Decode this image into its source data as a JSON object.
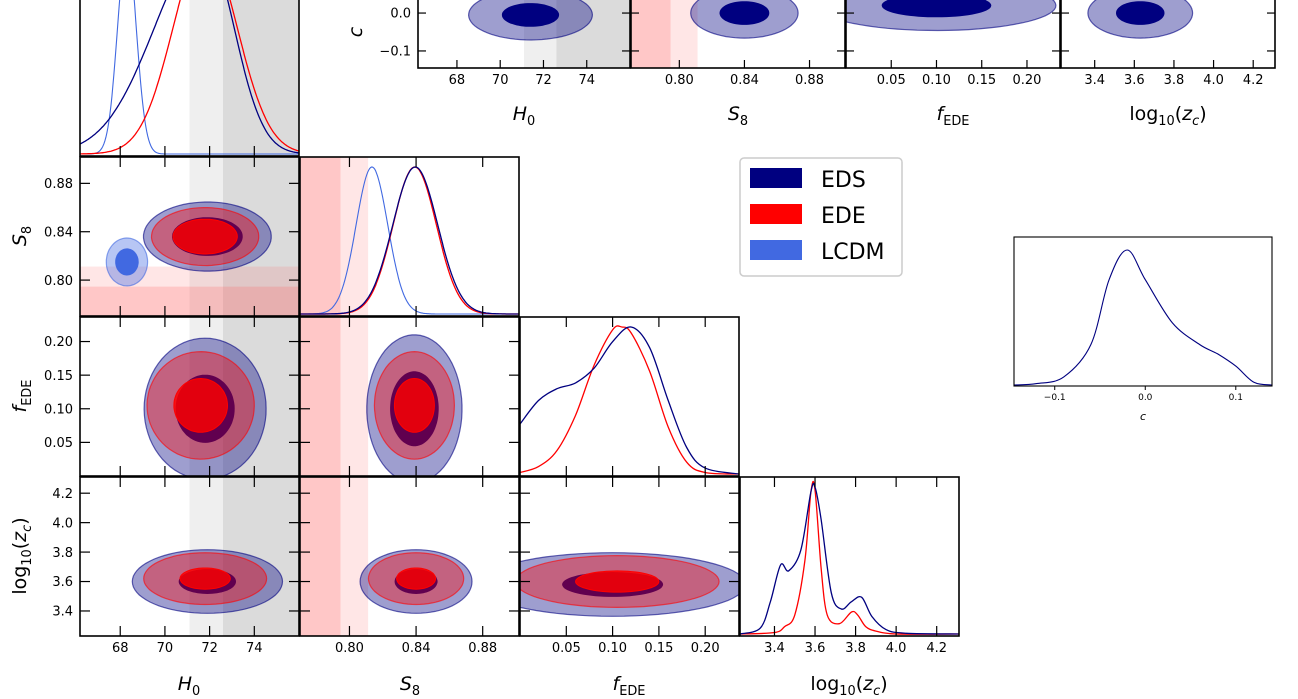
{
  "chart_data": {
    "type": "corner",
    "colors": {
      "EDS": "#000080",
      "EDE": "#ff0000",
      "LCDM": "#4169e1"
    },
    "legend": {
      "entries": [
        "EDS",
        "EDE",
        "LCDM"
      ],
      "placement": "upper-middle-right"
    },
    "parameters": [
      {
        "key": "H0",
        "label_main": "H",
        "label_sub": "0",
        "range": [
          66.2,
          76
        ],
        "ticks": [
          68,
          70,
          72,
          74
        ],
        "tick_labels": [
          "68",
          "70",
          "72",
          "74"
        ]
      },
      {
        "key": "S8",
        "label_main": "S",
        "label_sub": "8",
        "range": [
          0.7703,
          0.9018
        ],
        "ticks": [
          0.8,
          0.84,
          0.88
        ],
        "tick_labels": [
          "0.80",
          "0.84",
          "0.88"
        ]
      },
      {
        "key": "fEDE",
        "label_main": "f",
        "label_sub": "EDE",
        "range": [
          0,
          0.2365
        ],
        "ticks": [
          0.05,
          0.1,
          0.15,
          0.2
        ],
        "tick_labels": [
          "0.05",
          "0.10",
          "0.15",
          "0.20"
        ]
      },
      {
        "key": "logzc",
        "label_main": "log",
        "label_sub": "10",
        "label_tail": "(z",
        "label_tail_sub": "c",
        "label_end": ")",
        "range": [
          3.23,
          4.31
        ],
        "ticks": [
          3.4,
          3.6,
          3.8,
          4.0,
          4.2
        ],
        "tick_labels": [
          "3.4",
          "3.6",
          "3.8",
          "4.0",
          "4.2"
        ]
      }
    ],
    "extra_parameter": {
      "key": "c",
      "label": "c",
      "range": [
        -0.145,
        0.14
      ],
      "ticks": [
        -0.1,
        0.0,
        0.1
      ],
      "tick_labels": [
        "−0.1",
        "0.0",
        "0.1"
      ]
    },
    "bands": {
      "H0": {
        "color": "#999999",
        "inner": [
          72.6,
          76
        ],
        "outer": [
          71.1,
          76
        ]
      },
      "S8": {
        "color": "#ff6666",
        "inner": [
          0.7703,
          0.7946
        ],
        "outer": [
          0.7703,
          0.8112
        ]
      }
    },
    "marginals": {
      "H0": {
        "EDS": {
          "mu": 71.8,
          "sigma": 1.3,
          "left": 1.75,
          "right": 1.0
        },
        "EDE": {
          "mu": 71.8,
          "sigma": 1.2,
          "left": 1.2,
          "right": 1.2
        },
        "LCDM": {
          "mu": 68.3,
          "sigma": 0.42,
          "left": 1.0,
          "right": 1.0
        }
      },
      "S8": {
        "EDS": {
          "mu": 0.8395,
          "sigma": 0.0135,
          "left": 1.0,
          "right": 1.0
        },
        "EDE": {
          "mu": 0.8392,
          "sigma": 0.013,
          "left": 1.0,
          "right": 1.0
        },
        "LCDM": {
          "mu": 0.8135,
          "sigma": 0.0095,
          "left": 1.0,
          "right": 1.0
        }
      },
      "fEDE": {
        "EDS": [
          [
            0.0,
            0.34
          ],
          [
            0.02,
            0.5
          ],
          [
            0.04,
            0.58
          ],
          [
            0.06,
            0.62
          ],
          [
            0.08,
            0.72
          ],
          [
            0.1,
            0.9
          ],
          [
            0.12,
            1.0
          ],
          [
            0.14,
            0.86
          ],
          [
            0.16,
            0.5
          ],
          [
            0.18,
            0.18
          ],
          [
            0.2,
            0.04
          ],
          [
            0.2365,
            0.0
          ]
        ],
        "EDE": [
          [
            0.0,
            0.01
          ],
          [
            0.02,
            0.05
          ],
          [
            0.04,
            0.16
          ],
          [
            0.06,
            0.4
          ],
          [
            0.08,
            0.74
          ],
          [
            0.1,
            0.98
          ],
          [
            0.11,
            1.0
          ],
          [
            0.12,
            0.96
          ],
          [
            0.14,
            0.7
          ],
          [
            0.16,
            0.32
          ],
          [
            0.18,
            0.08
          ],
          [
            0.2,
            0.01
          ],
          [
            0.2365,
            0.0
          ]
        ]
      },
      "logzc": {
        "EDS": [
          [
            3.23,
            0.0
          ],
          [
            3.33,
            0.04
          ],
          [
            3.38,
            0.22
          ],
          [
            3.43,
            0.47
          ],
          [
            3.47,
            0.43
          ],
          [
            3.53,
            0.57
          ],
          [
            3.58,
            0.97
          ],
          [
            3.6,
            1.0
          ],
          [
            3.63,
            0.78
          ],
          [
            3.68,
            0.28
          ],
          [
            3.73,
            0.17
          ],
          [
            3.78,
            0.22
          ],
          [
            3.83,
            0.25
          ],
          [
            3.88,
            0.12
          ],
          [
            3.95,
            0.03
          ],
          [
            4.05,
            0.005
          ],
          [
            4.31,
            0.0
          ]
        ],
        "EDE": [
          [
            3.23,
            0.0
          ],
          [
            3.4,
            0.01
          ],
          [
            3.45,
            0.05
          ],
          [
            3.5,
            0.13
          ],
          [
            3.55,
            0.5
          ],
          [
            3.58,
            0.97
          ],
          [
            3.6,
            0.98
          ],
          [
            3.63,
            0.45
          ],
          [
            3.66,
            0.13
          ],
          [
            3.72,
            0.07
          ],
          [
            3.78,
            0.15
          ],
          [
            3.81,
            0.13
          ],
          [
            3.85,
            0.05
          ],
          [
            3.9,
            0.02
          ],
          [
            4.0,
            0.0
          ],
          [
            4.31,
            0.0
          ]
        ]
      },
      "c": [
        [
          -0.145,
          0.0
        ],
        [
          -0.12,
          0.01
        ],
        [
          -0.09,
          0.06
        ],
        [
          -0.06,
          0.3
        ],
        [
          -0.04,
          0.78
        ],
        [
          -0.02,
          1.0
        ],
        [
          0.0,
          0.78
        ],
        [
          0.03,
          0.46
        ],
        [
          0.06,
          0.3
        ],
        [
          0.08,
          0.23
        ],
        [
          0.1,
          0.14
        ],
        [
          0.12,
          0.02
        ],
        [
          0.14,
          0.0
        ]
      ]
    },
    "contours": {
      "S8_vs_H0": {
        "EDS": {
          "center": [
            71.9,
            0.836
          ],
          "s1": [
            1.3,
            0.013
          ],
          "angle": 0.3,
          "r68": 1.2,
          "r95": 2.2
        },
        "EDE": {
          "center": [
            71.8,
            0.836
          ],
          "s1": [
            1.2,
            0.012
          ],
          "angle": 0.3,
          "r68": 1.2,
          "r95": 2.0
        },
        "LCDM": {
          "center": [
            68.3,
            0.815
          ],
          "s1": [
            0.42,
            0.009
          ],
          "angle": -0.6,
          "r68": 1.2,
          "r95": 2.2
        }
      },
      "fEDE_vs_H0": {
        "EDS": {
          "center": [
            71.8,
            0.1
          ],
          "s1": [
            1.3,
            0.05
          ],
          "angle": 0.88,
          "r68": 1.0,
          "r95": 2.1
        },
        "EDE": {
          "center": [
            71.6,
            0.105
          ],
          "s1": [
            1.2,
            0.04
          ],
          "angle": 0.86,
          "r68": 1.0,
          "r95": 2.0
        }
      },
      "fEDE_vs_S8": {
        "EDS": {
          "center": [
            0.839,
            0.1
          ],
          "s1": [
            0.013,
            0.05
          ],
          "angle": 0.4,
          "r68": 1.1,
          "r95": 2.2
        },
        "EDE": {
          "center": [
            0.839,
            0.105
          ],
          "s1": [
            0.012,
            0.04
          ],
          "angle": 0.35,
          "r68": 1.0,
          "r95": 2.0
        }
      },
      "logzc_vs_H0": {
        "EDS": {
          "center": [
            71.9,
            3.6
          ],
          "s1": [
            1.4,
            0.09
          ],
          "angle": 0.0,
          "r68": 0.9,
          "r95": 2.4
        },
        "EDE": {
          "center": [
            71.8,
            3.62
          ],
          "s1": [
            1.25,
            0.08
          ],
          "angle": 0.0,
          "r68": 0.9,
          "r95": 2.2
        }
      },
      "logzc_vs_S8": {
        "EDS": {
          "center": [
            0.84,
            3.6
          ],
          "s1": [
            0.014,
            0.09
          ],
          "angle": 0.0,
          "r68": 0.9,
          "r95": 2.4
        },
        "EDE": {
          "center": [
            0.84,
            3.62
          ],
          "s1": [
            0.013,
            0.08
          ],
          "angle": 0.0,
          "r68": 0.9,
          "r95": 2.2
        }
      },
      "logzc_vs_fEDE": {
        "EDS": {
          "center": [
            0.1,
            3.58
          ],
          "s1": [
            0.06,
            0.09
          ],
          "angle": 0.0,
          "r68": 0.9,
          "r95": 2.4
        },
        "EDE": {
          "center": [
            0.105,
            3.6
          ],
          "s1": [
            0.05,
            0.08
          ],
          "angle": 0.0,
          "r68": 0.9,
          "r95": 2.2
        }
      },
      "c_vs_H0": {
        "EDS": {
          "center": [
            71.4,
            -0.005
          ],
          "s1": [
            1.3,
            0.03
          ],
          "angle": -0.25,
          "r68": 1.0,
          "r95": 2.2
        }
      },
      "c_vs_S8": {
        "EDS": {
          "center": [
            0.84,
            0.0
          ],
          "s1": [
            0.015,
            0.03
          ],
          "angle": 0.0,
          "r68": 1.0,
          "r95": 2.2
        }
      },
      "c_vs_fEDE": {
        "EDS": {
          "center": [
            0.1,
            0.02
          ],
          "s1": [
            0.06,
            0.03
          ],
          "angle": -0.25,
          "r68": 1.0,
          "r95": 2.2
        }
      },
      "c_vs_logzc": {
        "EDS": {
          "center": [
            3.63,
            0.0
          ],
          "s1": [
            0.12,
            0.03
          ],
          "angle": 0.0,
          "r68": 1.0,
          "r95": 2.2
        }
      }
    }
  }
}
